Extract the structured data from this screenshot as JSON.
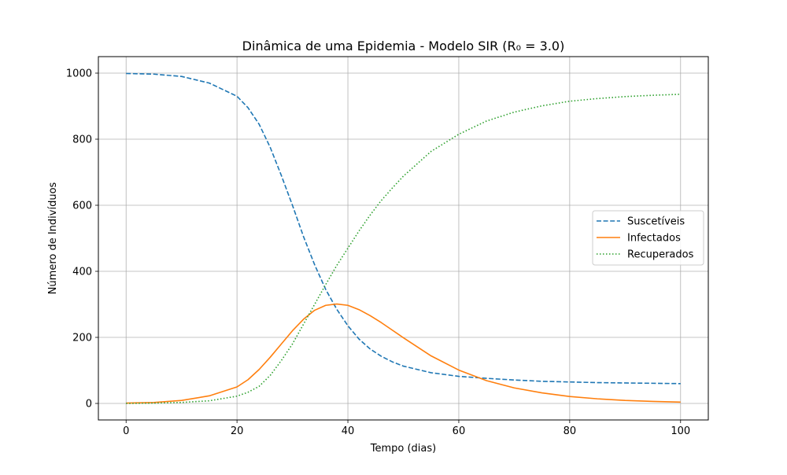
{
  "chart_data": {
    "type": "line",
    "title": "Dinâmica de uma Epidemia - Modelo SIR (R₀ = 3.0)",
    "xlabel": "Tempo (dias)",
    "ylabel": "Número de Indivíduos",
    "xlim": [
      -5,
      105
    ],
    "ylim": [
      -50,
      1050
    ],
    "xticks": [
      0,
      20,
      40,
      60,
      80,
      100
    ],
    "yticks": [
      0,
      200,
      400,
      600,
      800,
      1000
    ],
    "grid": true,
    "legend_position": "center-right",
    "x": [
      0,
      5,
      10,
      15,
      20,
      22,
      24,
      26,
      28,
      30,
      32,
      34,
      36,
      38,
      40,
      42,
      44,
      46,
      48,
      50,
      55,
      60,
      65,
      70,
      75,
      80,
      85,
      90,
      95,
      100
    ],
    "series": [
      {
        "name": "Suscetíveis",
        "style": "dashed",
        "color": "#1f77b4",
        "values": [
          999,
          997,
          990,
          970,
          930,
          895,
          845,
          775,
          690,
          600,
          505,
          420,
          345,
          285,
          235,
          195,
          165,
          143,
          126,
          113,
          93,
          82,
          76,
          71,
          67,
          65,
          63,
          62,
          61,
          60
        ]
      },
      {
        "name": "Infectados",
        "style": "solid",
        "color": "#ff7f0e",
        "values": [
          1,
          3,
          9,
          23,
          50,
          72,
          103,
          140,
          180,
          220,
          255,
          282,
          297,
          301,
          297,
          284,
          266,
          245,
          222,
          199,
          144,
          101,
          69,
          47,
          32,
          21,
          14,
          9,
          6,
          4
        ]
      },
      {
        "name": "Recuperados",
        "style": "dotted",
        "color": "#2ca02c",
        "values": [
          0,
          1,
          3,
          8,
          22,
          34,
          52,
          85,
          130,
          180,
          240,
          300,
          360,
          418,
          470,
          522,
          570,
          614,
          652,
          688,
          763,
          815,
          855,
          882,
          901,
          915,
          923,
          929,
          933,
          936
        ]
      }
    ]
  }
}
